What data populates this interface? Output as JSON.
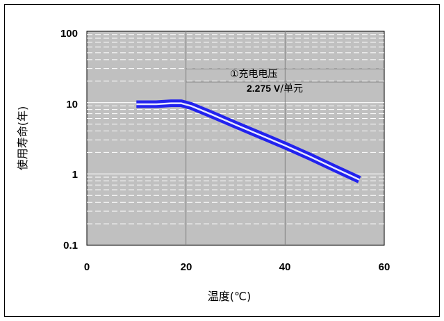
{
  "chart_data": {
    "type": "line",
    "title": "",
    "xlabel": "温度(℃)",
    "ylabel": "使用寿命(年)",
    "x_ticks": [
      "0",
      "20",
      "40",
      "60"
    ],
    "y_ticks": [
      "0.1",
      "1",
      "10",
      "100"
    ],
    "xlim": [
      0,
      60
    ],
    "ylim": [
      0.1,
      100
    ],
    "y_scale": "log",
    "grid": true,
    "colors": {
      "plot_bg": "#c0c0c0",
      "line": "#2222ee",
      "line_highlight": "#e8e8ff",
      "grid": "#ffffff"
    },
    "annotation": {
      "line1": "①充电电压",
      "value": "2.275 V",
      "unit": "/单元"
    },
    "series": [
      {
        "values_x": [
          10,
          14,
          17,
          19,
          21,
          25,
          30,
          35,
          40,
          45,
          50,
          55
        ],
        "values_y": [
          9.5,
          9.5,
          9.8,
          9.8,
          9.0,
          6.9,
          4.9,
          3.5,
          2.5,
          1.75,
          1.2,
          0.83
        ]
      }
    ]
  }
}
